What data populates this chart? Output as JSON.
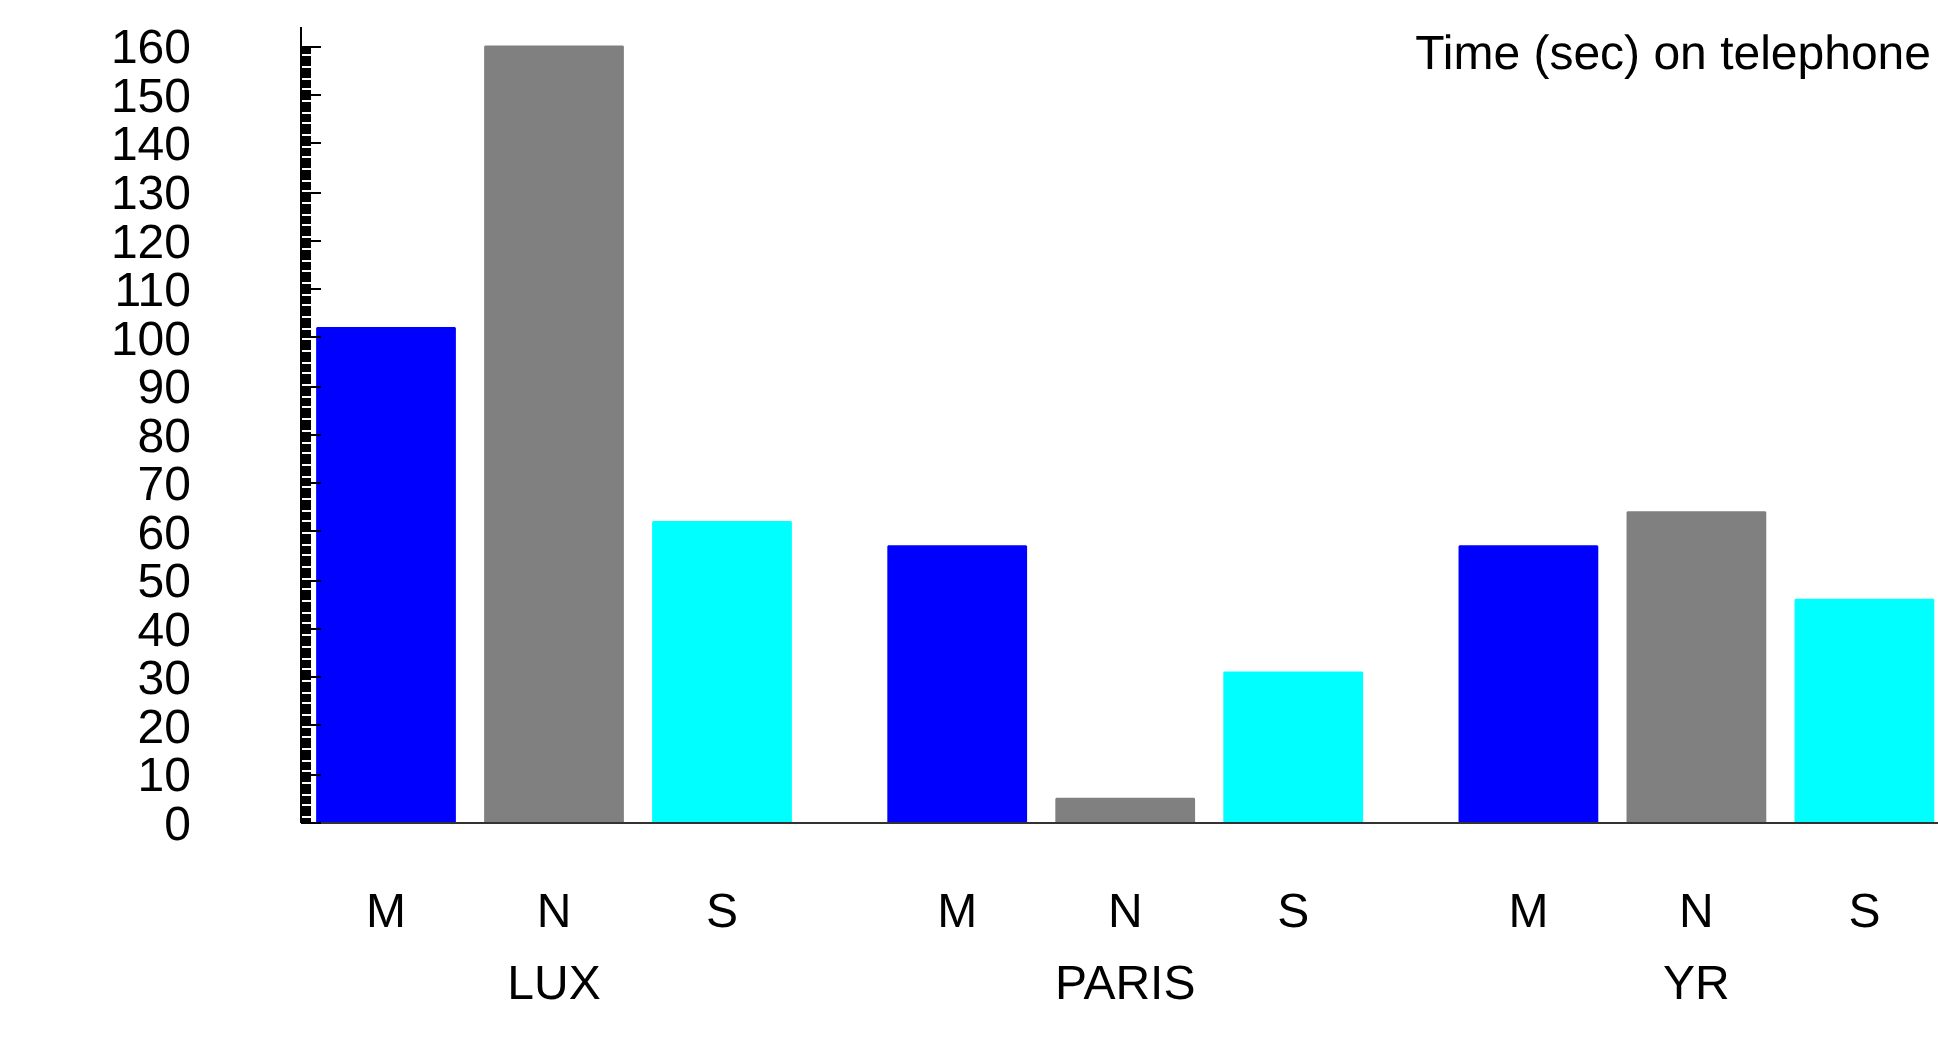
{
  "chart_data": {
    "type": "bar",
    "title": "Time (sec) on telephone",
    "categories": [
      "LUX",
      "PARIS",
      "YR"
    ],
    "series": [
      {
        "name": "M",
        "color": "#0000ff",
        "values": [
          102,
          57,
          57
        ]
      },
      {
        "name": "N",
        "color": "#808080",
        "values": [
          160,
          5,
          64
        ]
      },
      {
        "name": "S",
        "color": "#00ffff",
        "values": [
          62,
          31,
          46
        ]
      }
    ],
    "ylim": [
      0,
      164
    ],
    "yticks": [
      0,
      10,
      20,
      30,
      40,
      50,
      60,
      70,
      80,
      90,
      100,
      110,
      120,
      130,
      140,
      150,
      160
    ],
    "grid": false
  }
}
